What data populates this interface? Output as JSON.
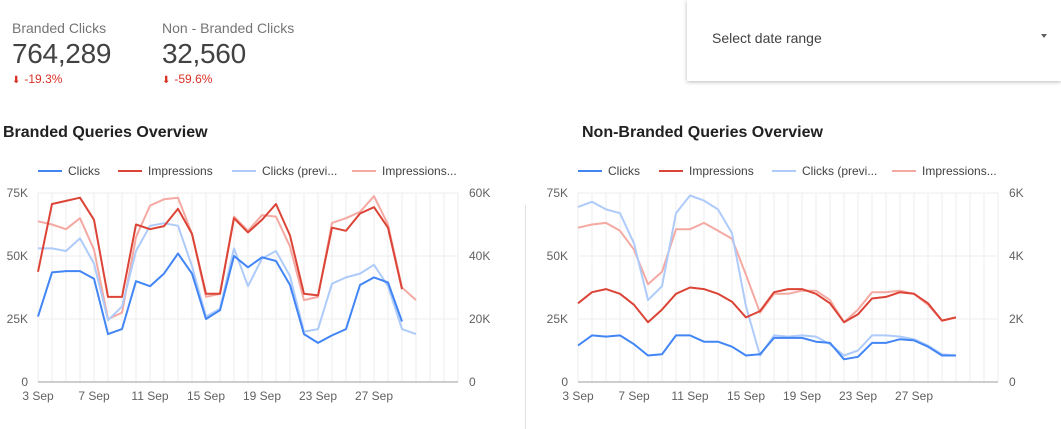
{
  "kpis": [
    {
      "label": "Branded Clicks",
      "value": "764,289",
      "delta": "-19.3%",
      "arrow": "⬇"
    },
    {
      "label": "Non - Branded Clicks",
      "value": "32,560",
      "delta": "-59.6%",
      "arrow": "⬇"
    }
  ],
  "date_control": {
    "label": "Select date range"
  },
  "colors": {
    "clicks": "#4285f4",
    "impressions": "#db4437",
    "clicks_prev": "#aecbfa",
    "impressions_prev": "#f4a9a2",
    "grid": "#eeeeee",
    "axis_text": "#616161"
  },
  "chart_data": [
    {
      "type": "line",
      "title": "Branded Queries Overview",
      "legend": [
        "Clicks",
        "Impressions",
        "Clicks (previ...",
        "Impressions..."
      ],
      "x_ticks": [
        "3 Sep",
        "7 Sep",
        "11 Sep",
        "15 Sep",
        "19 Sep",
        "23 Sep",
        "27 Sep"
      ],
      "y_left_ticks": [
        "0",
        "25K",
        "50K",
        "75K"
      ],
      "y_right_ticks": [
        "0",
        "20K",
        "40K",
        "60K"
      ],
      "y_left_range": [
        0,
        75000
      ],
      "y_right_range": [
        0,
        60000
      ],
      "days": 31,
      "series": [
        {
          "name": "Clicks",
          "axis": "left",
          "color_key": "clicks",
          "values": [
            26000,
            43500,
            44000,
            44000,
            41000,
            19000,
            21000,
            40000,
            38000,
            43000,
            51000,
            43000,
            25000,
            28500,
            50000,
            45500,
            49500,
            48000,
            38500,
            19000,
            15500,
            18500,
            21000,
            38500,
            41500,
            39500,
            24000,
            null
          ]
        },
        {
          "name": "Impressions",
          "axis": "right",
          "color_key": "impressions",
          "values": [
            35000,
            56500,
            57500,
            58500,
            51500,
            27000,
            27000,
            50000,
            48500,
            49500,
            55000,
            47000,
            28000,
            28000,
            52000,
            47500,
            51500,
            56500,
            46500,
            28000,
            27500,
            49000,
            48000,
            53500,
            55500,
            49000,
            29500,
            null
          ]
        },
        {
          "name": "Clicks (previ...",
          "axis": "left",
          "color_key": "clicks_prev",
          "values": [
            53000,
            53000,
            52000,
            57000,
            47000,
            24500,
            30000,
            52000,
            62000,
            63000,
            62000,
            46000,
            26000,
            29000,
            53000,
            38000,
            49000,
            52000,
            42000,
            20000,
            21000,
            39000,
            41500,
            43000,
            46500,
            38000,
            21000,
            19000
          ]
        },
        {
          "name": "Impressions...",
          "axis": "right",
          "color_key": "impressions_prev",
          "values": [
            51000,
            50000,
            48500,
            52000,
            42000,
            20000,
            22000,
            46000,
            56000,
            58000,
            58500,
            47000,
            27000,
            28000,
            52500,
            48000,
            53000,
            52500,
            43000,
            26000,
            27000,
            50500,
            52000,
            54000,
            59000,
            50000,
            30000,
            26000
          ]
        }
      ]
    },
    {
      "type": "line",
      "title": "Non-Branded Queries Overview",
      "legend": [
        "Clicks",
        "Impressions",
        "Clicks (previ...",
        "Impressions..."
      ],
      "x_ticks": [
        "3 Sep",
        "7 Sep",
        "11 Sep",
        "15 Sep",
        "19 Sep",
        "23 Sep",
        "27 Sep"
      ],
      "y_left_ticks": [
        "0",
        "25K",
        "50K",
        "75K"
      ],
      "y_right_ticks": [
        "0",
        "2K",
        "4K",
        "6K"
      ],
      "y_left_range": [
        0,
        75000
      ],
      "y_right_range": [
        0,
        6000
      ],
      "days": 31,
      "series": [
        {
          "name": "Clicks",
          "axis": "left",
          "color_key": "clicks",
          "values": [
            14500,
            18500,
            18000,
            18500,
            15000,
            10500,
            11000,
            18500,
            18500,
            16000,
            16000,
            14000,
            10500,
            11000,
            17500,
            17500,
            17500,
            16000,
            15500,
            9000,
            10000,
            15500,
            15500,
            17000,
            16500,
            14000,
            10500,
            10500
          ]
        },
        {
          "name": "Impressions",
          "axis": "right",
          "color_key": "impressions",
          "values": [
            2500,
            2850,
            2950,
            2800,
            2450,
            1900,
            2300,
            2800,
            3000,
            2950,
            2800,
            2550,
            2050,
            2250,
            2850,
            2950,
            2950,
            2800,
            2500,
            1900,
            2150,
            2650,
            2700,
            2850,
            2800,
            2500,
            1950,
            2050
          ]
        },
        {
          "name": "Clicks (previ...",
          "axis": "left",
          "color_key": "clicks_prev",
          "values": [
            69500,
            71500,
            68500,
            67000,
            55000,
            32500,
            38000,
            67000,
            74000,
            72000,
            68500,
            59000,
            30000,
            10500,
            18500,
            18000,
            18500,
            18000,
            15000,
            10500,
            12500,
            18500,
            18500,
            18000,
            17000,
            14500,
            11000,
            10500
          ]
        },
        {
          "name": "Impressions...",
          "axis": "right",
          "color_key": "impressions_prev",
          "values": [
            4900,
            5000,
            5050,
            4800,
            4200,
            3100,
            3500,
            4850,
            4850,
            5050,
            4800,
            4550,
            3400,
            2200,
            2800,
            2800,
            2900,
            2900,
            2600,
            1900,
            2300,
            2850,
            2850,
            2900,
            2800,
            2450,
            1950,
            2050
          ]
        }
      ]
    }
  ]
}
